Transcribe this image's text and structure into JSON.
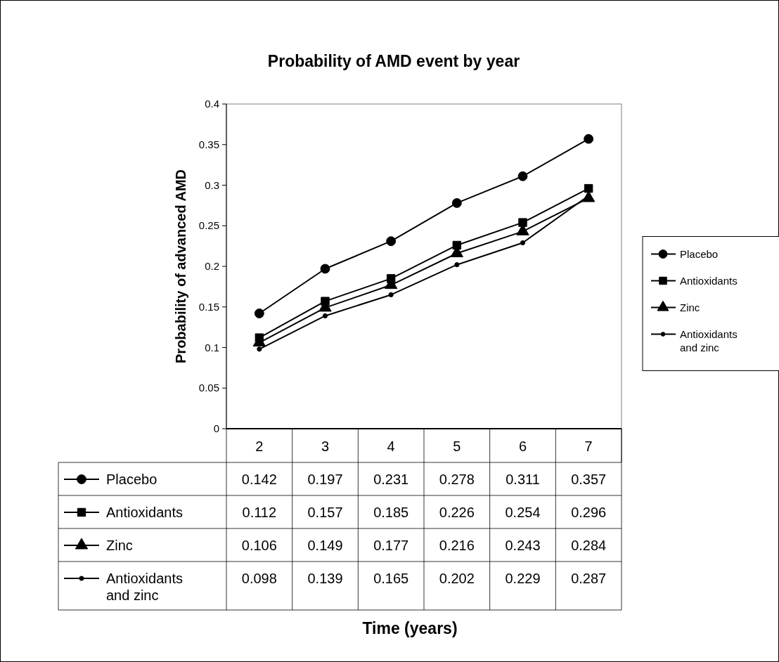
{
  "chart_data": {
    "type": "line",
    "title": "Probability of AMD event by year",
    "annotations": [
      "Time (years)"
    ],
    "ylabel": "Probability of advanced AMD",
    "categories": [
      "2",
      "3",
      "4",
      "5",
      "6",
      "7"
    ],
    "series": [
      {
        "name": "Placebo",
        "color": "#000000",
        "marker": "circle",
        "values": [
          0.142,
          0.197,
          0.231,
          0.278,
          0.311,
          0.357
        ]
      },
      {
        "name": "Antioxidants",
        "color": "#000000",
        "marker": "square",
        "values": [
          0.112,
          0.157,
          0.185,
          0.226,
          0.254,
          0.296
        ]
      },
      {
        "name": "Zinc",
        "color": "#000000",
        "marker": "triangle",
        "values": [
          0.106,
          0.149,
          0.177,
          0.216,
          0.243,
          0.284
        ]
      },
      {
        "name": "Antioxidants and zinc",
        "color": "#000000",
        "marker": "circle",
        "values": [
          0.098,
          0.139,
          0.165,
          0.202,
          0.229,
          0.287
        ]
      }
    ],
    "ylim": [
      0,
      0.4
    ],
    "yticks": [
      0,
      0.05,
      0.1,
      0.15,
      0.2,
      0.25,
      0.3,
      0.35,
      0.4
    ],
    "grid": false,
    "legend": "right",
    "data_labels": true,
    "line_style": "solid"
  }
}
